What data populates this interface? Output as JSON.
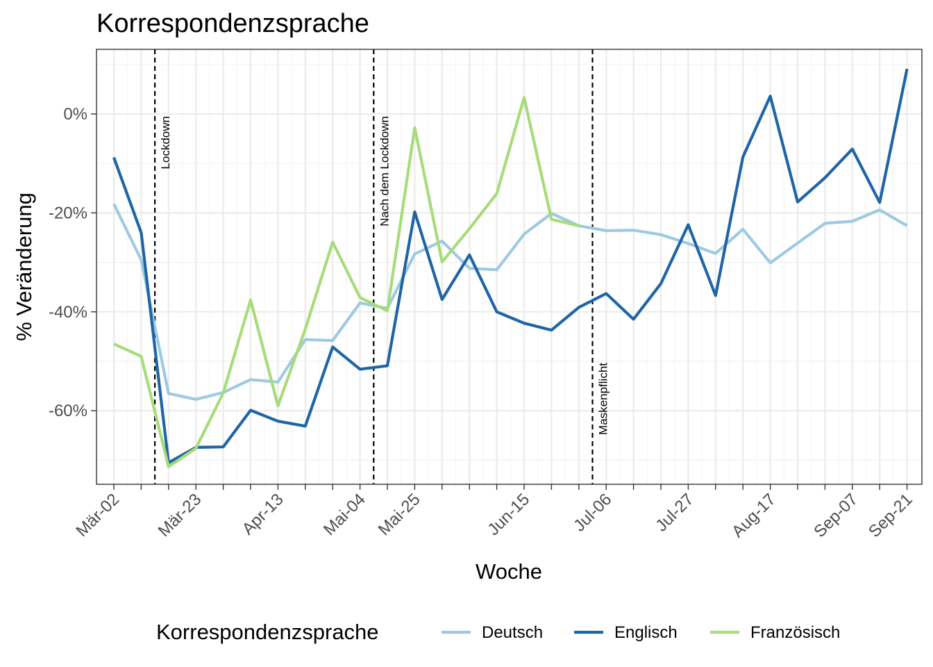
{
  "chart_data": {
    "type": "line",
    "title": "Korrespondenzsprache",
    "xlabel": "Woche",
    "ylabel": "% Veränderung",
    "x_tick_labels": [
      "Mär-02",
      "Mär-23",
      "Apr-13",
      "Mai-04",
      "Mai-25",
      "Jun-15",
      "Jul-06",
      "Jul-27",
      "Aug-17",
      "Sep-07",
      "Sep-21"
    ],
    "x_tick_weeks": [
      0,
      3,
      6,
      9,
      11,
      15,
      18,
      21,
      24,
      27,
      29
    ],
    "ylim": [
      -75,
      13.5
    ],
    "y_ticks": [
      0,
      -20,
      -40,
      -60
    ],
    "y_tick_labels": [
      "0%",
      "-20%",
      "-40%",
      "-60%"
    ],
    "grid": true,
    "legend": {
      "title": "Korrespondenzsprache",
      "position": "bottom"
    },
    "series": [
      {
        "name": "Deutsch",
        "color": "#9ecae1",
        "x": [
          0,
          1,
          2,
          3,
          4,
          5,
          6,
          7,
          8,
          9,
          10,
          11,
          12,
          13,
          14,
          15,
          16,
          17,
          18,
          19,
          20,
          21,
          22,
          23,
          24,
          25,
          26,
          27,
          28,
          29
        ],
        "y": [
          -18.2,
          -29.5,
          -56.5,
          -57.7,
          -56.3,
          -53.7,
          -54.2,
          -45.6,
          -45.8,
          -38.2,
          -39.3,
          -28.3,
          -25.7,
          -31.2,
          -31.5,
          -24.3,
          -20.1,
          -22.6,
          -23.6,
          -23.5,
          -24.4,
          -26.2,
          -28.2,
          -23.3,
          -30.1,
          -26.1,
          -22.1,
          -21.7,
          -19.4,
          -22.6
        ]
      },
      {
        "name": "Englisch",
        "color": "#1f65a6",
        "x": [
          0,
          1,
          2,
          3,
          4,
          5,
          6,
          7,
          8,
          9,
          10,
          11,
          12,
          13,
          14,
          15,
          16,
          17,
          18,
          19,
          20,
          21,
          22,
          23,
          24,
          25,
          26,
          27,
          28,
          29
        ],
        "y": [
          -8.8,
          -24,
          -70.5,
          -67.4,
          -67.3,
          -59.9,
          -62.1,
          -63.1,
          -47.1,
          -51.6,
          -50.9,
          -19.8,
          -37.5,
          -28.5,
          -40,
          -42.3,
          -43.7,
          -39.1,
          -36.3,
          -41.5,
          -34.3,
          -22.4,
          -36.7,
          -8.7,
          3.6,
          -17.8,
          -12.9,
          -7.1,
          -17.9,
          9.1
        ]
      },
      {
        "name": "Französisch",
        "color": "#a6dc7a",
        "x": [
          0,
          1,
          2,
          3,
          4,
          5,
          6,
          7,
          8,
          9,
          10,
          11,
          12,
          13,
          14,
          15,
          16,
          17
        ],
        "y": [
          -46.5,
          -49,
          -71.3,
          -67.6,
          -56.4,
          -37.6,
          -59,
          -43.5,
          -25.9,
          -37.1,
          -39.8,
          -2.8,
          -29.9,
          -23.2,
          -16.1,
          3.3,
          -21.3,
          -22.6
        ]
      }
    ],
    "vlines": [
      {
        "x": 1.5,
        "label": "Lockdown"
      },
      {
        "x": 9.5,
        "label": "Nach dem Lockdown"
      },
      {
        "x": 17.5,
        "label": "Maskenpflicht"
      }
    ]
  }
}
